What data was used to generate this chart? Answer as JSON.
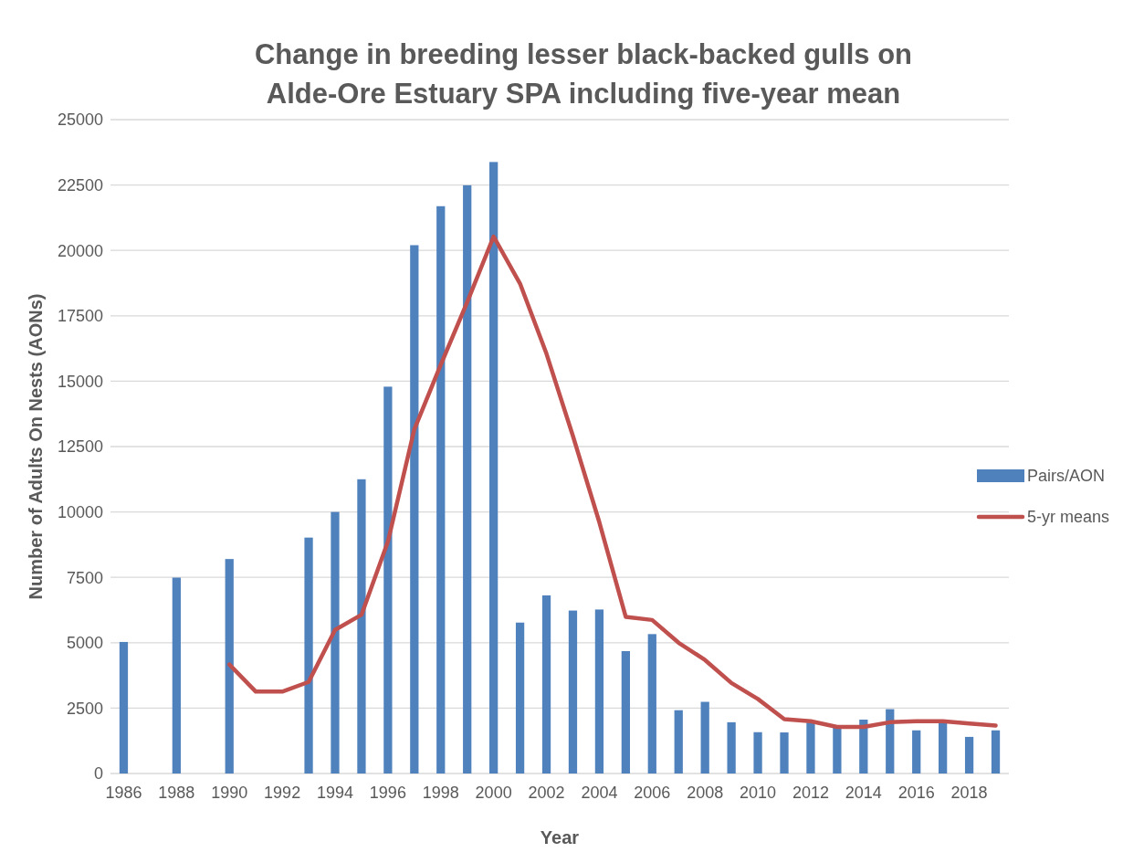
{
  "chart_data": {
    "type": "bar",
    "title": "Change in breeding lesser black-backed gulls on Alde-Ore Estuary SPA including five-year mean",
    "xlabel": "Year",
    "ylabel": "Number of Adults On Nests (AONs)",
    "categories": [
      "1986",
      null,
      "1988",
      null,
      "1990",
      null,
      "1992",
      null,
      "1994",
      null,
      "1996",
      null,
      "1998",
      null,
      "2000",
      null,
      "2002",
      null,
      "2004",
      null,
      "2006",
      null,
      "2008",
      null,
      "2010",
      null,
      "2012",
      null,
      "2014",
      null,
      "2016",
      null,
      "2018",
      null
    ],
    "series": [
      {
        "name": "Pairs/AON",
        "color": "#4f81bd",
        "values": [
          5030,
          null,
          7490,
          null,
          8200,
          null,
          null,
          9020,
          10000,
          11250,
          14790,
          20200,
          21690,
          22490,
          23380,
          5770,
          6810,
          6230,
          6270,
          4680,
          5330,
          2420,
          2740,
          1960,
          1580,
          1570,
          1950,
          1750,
          2060,
          2460,
          1650,
          2000,
          1400,
          1650
        ]
      },
      {
        "name": "5-yr means",
        "type": "line",
        "color": "#c0504d",
        "values": [
          null,
          null,
          null,
          null,
          4170,
          3130,
          3130,
          3500,
          5490,
          6070,
          8870,
          13160,
          15630,
          18020,
          20530,
          18730,
          16050,
          12910,
          9610,
          5990,
          5870,
          5000,
          4340,
          3460,
          2850,
          2080,
          2000,
          1780,
          1780,
          1960,
          2000,
          2000,
          1910,
          1830
        ]
      }
    ],
    "ylim": [
      0,
      25000
    ],
    "yticks": [
      0,
      2500,
      5000,
      7500,
      10000,
      12500,
      15000,
      17500,
      20000,
      22500,
      25000
    ],
    "grid": "y",
    "legend": "right"
  }
}
